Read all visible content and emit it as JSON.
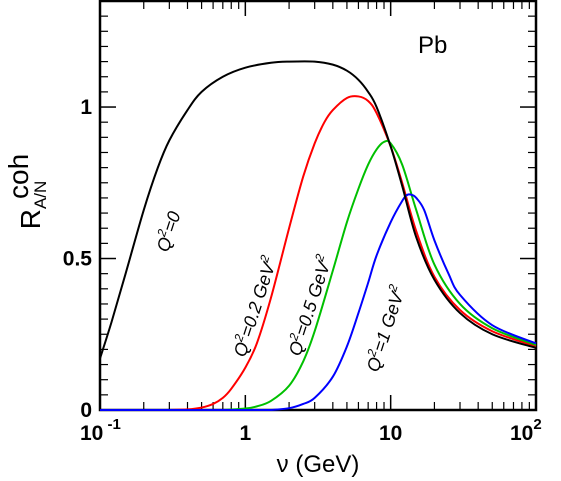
{
  "chart_data": {
    "type": "line",
    "title": "",
    "nucleus": "Pb",
    "xlabel": {
      "base": "ν (GeV)"
    },
    "ylabel": {
      "base": "R",
      "sup": "coh",
      "sub": "A/N"
    },
    "x_scale": "log",
    "xlim": [
      0.1,
      100
    ],
    "ylim": [
      0,
      1.35
    ],
    "x_ticks": [
      {
        "value": 0.1,
        "base": "10",
        "exp": " -1"
      },
      {
        "value": 1,
        "base": "1",
        "exp": ""
      },
      {
        "value": 10,
        "base": "10",
        "exp": ""
      },
      {
        "value": 100,
        "base": "10",
        "exp": "2"
      }
    ],
    "y_ticks": [
      {
        "value": 0,
        "label": "0"
      },
      {
        "value": 0.5,
        "label": "0.5"
      },
      {
        "value": 1,
        "label": "1"
      }
    ],
    "grid": false,
    "legend": "none",
    "series": [
      {
        "name": "Q²=0",
        "label": {
          "pre": "Q",
          "sup": "2",
          "post": "=0",
          "sup2": ""
        },
        "color": "#000000",
        "x": [
          0.1,
          0.12,
          0.15,
          0.2,
          0.25,
          0.3,
          0.4,
          0.5,
          0.7,
          1.0,
          1.5,
          2.0,
          3.0,
          4.0,
          5.0,
          6.0,
          7.0,
          8.0,
          10,
          12,
          15,
          20,
          30,
          50,
          100
        ],
        "y": [
          0.17,
          0.29,
          0.45,
          0.66,
          0.8,
          0.89,
          0.99,
          1.05,
          1.1,
          1.13,
          1.146,
          1.15,
          1.15,
          1.14,
          1.12,
          1.09,
          1.05,
          1.0,
          0.87,
          0.74,
          0.57,
          0.43,
          0.32,
          0.25,
          0.205
        ]
      },
      {
        "name": "Q²=0.2 GeV²",
        "label": {
          "pre": "Q",
          "sup": "2",
          "post": "=0.2 GeV",
          "sup2": "2"
        },
        "color": "#ff0000",
        "x": [
          0.3,
          0.4,
          0.5,
          0.6,
          0.7,
          0.8,
          1.0,
          1.2,
          1.5,
          2.0,
          2.5,
          3.0,
          3.5,
          4.0,
          5.0,
          6.0,
          7.0,
          8.0,
          10,
          12,
          15,
          20,
          30,
          50,
          100
        ],
        "y": [
          0,
          0.002,
          0.008,
          0.02,
          0.04,
          0.07,
          0.14,
          0.22,
          0.37,
          0.6,
          0.77,
          0.88,
          0.95,
          0.99,
          1.03,
          1.035,
          1.02,
          0.98,
          0.87,
          0.75,
          0.59,
          0.44,
          0.33,
          0.26,
          0.21
        ]
      },
      {
        "name": "Q²=0.5 GeV²",
        "label": {
          "pre": "Q",
          "sup": "2",
          "post": "=0.5 GeV",
          "sup2": "2"
        },
        "color": "#00c000",
        "x": [
          0.7,
          1.0,
          1.2,
          1.5,
          2.0,
          2.5,
          3.0,
          4.0,
          5.0,
          6.0,
          7.0,
          8.0,
          9.0,
          10,
          12,
          15,
          20,
          30,
          50,
          100
        ],
        "y": [
          0,
          0.005,
          0.012,
          0.03,
          0.08,
          0.16,
          0.26,
          0.46,
          0.62,
          0.73,
          0.81,
          0.86,
          0.885,
          0.88,
          0.81,
          0.66,
          0.48,
          0.35,
          0.27,
          0.215
        ]
      },
      {
        "name": "Q²=1 GeV²",
        "label": {
          "pre": "Q",
          "sup": "2",
          "post": "=1 GeV",
          "sup2": "2"
        },
        "color": "#0000ff",
        "x": [
          1.5,
          2.0,
          2.5,
          3.0,
          4.0,
          5.0,
          6.0,
          7.0,
          8.0,
          10,
          12,
          13,
          14,
          15,
          17,
          20,
          25,
          30,
          50,
          100
        ],
        "y": [
          0,
          0.006,
          0.02,
          0.04,
          0.11,
          0.21,
          0.32,
          0.42,
          0.51,
          0.62,
          0.69,
          0.71,
          0.71,
          0.7,
          0.66,
          0.56,
          0.45,
          0.38,
          0.28,
          0.22
        ]
      }
    ]
  }
}
